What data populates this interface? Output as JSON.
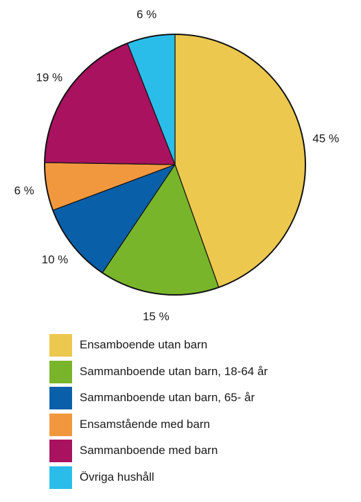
{
  "chart_data": {
    "type": "pie",
    "start": "top",
    "direction": "clockwise",
    "slices": [
      {
        "label": "Ensamboende utan barn",
        "value": 45,
        "text": "45 %",
        "color": "#ecc84e"
      },
      {
        "label": "Sammanboende utan barn, 18-64 år",
        "value": 15,
        "text": "15 %",
        "color": "#79b52b"
      },
      {
        "label": "Sammanboende utan barn, 65- år",
        "value": 10,
        "text": "10 %",
        "color": "#0a5fa9"
      },
      {
        "label": "Ensamstående med barn",
        "value": 6,
        "text": "6 %",
        "color": "#f1983f"
      },
      {
        "label": "Sammanboende med barn",
        "value": 19,
        "text": "19 %",
        "color": "#a8125f"
      },
      {
        "label": "Övriga hushåll",
        "value": 6,
        "text": "6 %",
        "color": "#2bbdea"
      }
    ],
    "legend_position": "bottom"
  }
}
